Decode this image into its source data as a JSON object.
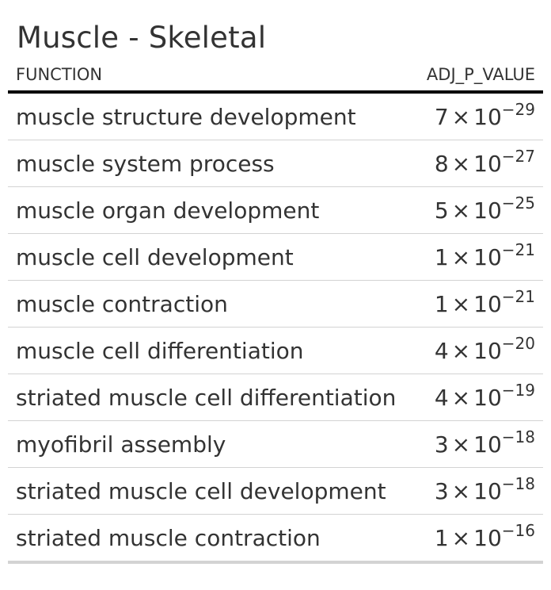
{
  "title": "Muscle - Skeletal",
  "columns": {
    "function": "FUNCTION",
    "adj_p_value": "ADJ_P_VALUE"
  },
  "rows": [
    {
      "function": "muscle structure development",
      "mantissa": "7",
      "exponent": "−29"
    },
    {
      "function": "muscle system process",
      "mantissa": "8",
      "exponent": "−27"
    },
    {
      "function": "muscle organ development",
      "mantissa": "5",
      "exponent": "−25"
    },
    {
      "function": "muscle cell development",
      "mantissa": "1",
      "exponent": "−21"
    },
    {
      "function": "muscle contraction",
      "mantissa": "1",
      "exponent": "−21"
    },
    {
      "function": "muscle cell differentiation",
      "mantissa": "4",
      "exponent": "−20"
    },
    {
      "function": "striated muscle cell differentiation",
      "mantissa": "4",
      "exponent": "−19"
    },
    {
      "function": "myofibril assembly",
      "mantissa": "3",
      "exponent": "−18"
    },
    {
      "function": "striated muscle cell development",
      "mantissa": "3",
      "exponent": "−18"
    },
    {
      "function": "striated muscle contraction",
      "mantissa": "1",
      "exponent": "−16"
    }
  ],
  "base": "10",
  "times_sign": "×"
}
